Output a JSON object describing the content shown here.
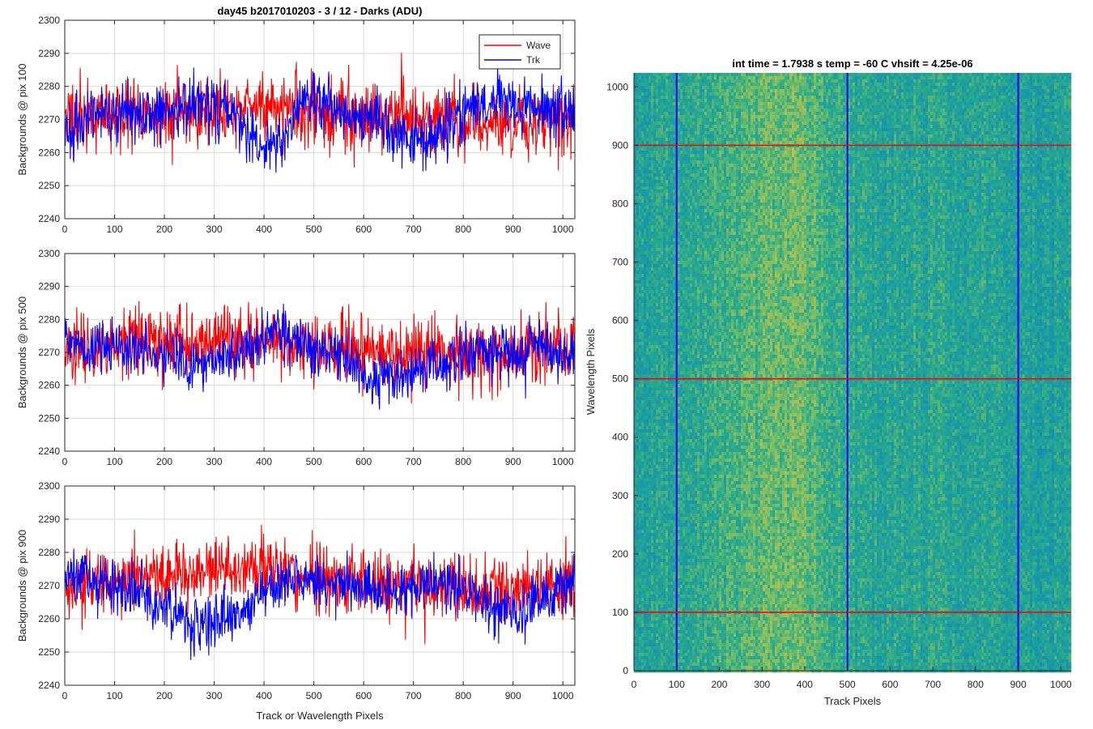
{
  "figure_title": "day45 b2017010203 - 3 / 12 - Darks (ADU)",
  "chart_data": [
    {
      "type": "line",
      "panel": "pix100",
      "ylabel": "Backgrounds @ pix 100",
      "xlabel": "",
      "xlim": [
        0,
        1024
      ],
      "ylim": [
        2240,
        2300
      ],
      "xticks": [
        0,
        100,
        200,
        300,
        400,
        500,
        600,
        700,
        800,
        900,
        1000
      ],
      "yticks": [
        2240,
        2250,
        2260,
        2270,
        2280,
        2290,
        2300
      ],
      "grid": true,
      "legend": {
        "placement": "top-right",
        "entries": [
          "Wave",
          "Trk"
        ]
      },
      "series": [
        {
          "name": "Wave",
          "color": "#ff0000",
          "noise_std": 6.5,
          "seed": 11,
          "trend_x": [
            0,
            200,
            300,
            400,
            500,
            600,
            700,
            800,
            900,
            1024
          ],
          "trend_y": [
            2271,
            2272,
            2273,
            2274,
            2272,
            2271,
            2270,
            2269,
            2269,
            2270
          ]
        },
        {
          "name": "Trk",
          "color": "#0000ff",
          "noise_std": 5.5,
          "seed": 23,
          "trend_x": [
            0,
            100,
            200,
            280,
            340,
            380,
            420,
            480,
            560,
            640,
            700,
            730,
            800,
            880,
            1024
          ],
          "trend_y": [
            2268,
            2271,
            2272,
            2275,
            2272,
            2262,
            2260,
            2276,
            2271,
            2269,
            2264,
            2262,
            2272,
            2276,
            2273
          ]
        }
      ]
    },
    {
      "type": "line",
      "panel": "pix500",
      "ylabel": "Backgrounds @ pix 500",
      "xlabel": "",
      "xlim": [
        0,
        1024
      ],
      "ylim": [
        2240,
        2300
      ],
      "xticks": [
        0,
        100,
        200,
        300,
        400,
        500,
        600,
        700,
        800,
        900,
        1000
      ],
      "yticks": [
        2240,
        2250,
        2260,
        2270,
        2280,
        2290,
        2300
      ],
      "grid": true,
      "series": [
        {
          "name": "Wave",
          "color": "#ff0000",
          "noise_std": 6.5,
          "seed": 37,
          "trend_x": [
            0,
            200,
            300,
            400,
            500,
            600,
            700,
            800,
            900,
            1024
          ],
          "trend_y": [
            2271,
            2273,
            2274,
            2274,
            2272,
            2270,
            2270,
            2269,
            2269,
            2271
          ]
        },
        {
          "name": "Trk",
          "color": "#0000ff",
          "noise_std": 5.0,
          "seed": 41,
          "trend_x": [
            0,
            100,
            180,
            260,
            330,
            420,
            560,
            620,
            700,
            820,
            1024
          ],
          "trend_y": [
            2274,
            2271,
            2270,
            2266,
            2268,
            2276,
            2268,
            2262,
            2264,
            2270,
            2270
          ]
        }
      ]
    },
    {
      "type": "line",
      "panel": "pix900",
      "ylabel": "Backgrounds @ pix 900",
      "xlabel": "Track or Wavelength Pixels",
      "xlim": [
        0,
        1024
      ],
      "ylim": [
        2240,
        2300
      ],
      "xticks": [
        0,
        100,
        200,
        300,
        400,
        500,
        600,
        700,
        800,
        900,
        1000
      ],
      "yticks": [
        2240,
        2250,
        2260,
        2270,
        2280,
        2290,
        2300
      ],
      "grid": true,
      "series": [
        {
          "name": "Wave",
          "color": "#ff0000",
          "noise_std": 6.5,
          "seed": 53,
          "trend_x": [
            0,
            200,
            300,
            400,
            500,
            600,
            700,
            800,
            900,
            1024
          ],
          "trend_y": [
            2270,
            2273,
            2276,
            2275,
            2273,
            2271,
            2270,
            2269,
            2268,
            2270
          ]
        },
        {
          "name": "Trk",
          "color": "#0000ff",
          "noise_std": 5.0,
          "seed": 67,
          "trend_x": [
            0,
            100,
            170,
            260,
            330,
            420,
            480,
            560,
            640,
            700,
            760,
            860,
            920,
            1024
          ],
          "trend_y": [
            2274,
            2269,
            2265,
            2258,
            2260,
            2270,
            2272,
            2270,
            2268,
            2270,
            2271,
            2264,
            2262,
            2274
          ]
        }
      ]
    },
    {
      "type": "heatmap",
      "panel": "image",
      "title": "int time = 1.7938 s    temp = -60 C    vhsift = 4.25e-06",
      "xlabel": "Track Pixels",
      "ylabel": "Wavelength Pixels",
      "xlim": [
        0,
        1024
      ],
      "ylim": [
        0,
        1024
      ],
      "xticks": [
        0,
        100,
        200,
        300,
        400,
        500,
        600,
        700,
        800,
        900,
        1000
      ],
      "yticks": [
        0,
        100,
        200,
        300,
        400,
        500,
        600,
        700,
        800,
        900,
        1000
      ],
      "colormap": "parula",
      "column_profile": {
        "x": [
          0,
          100,
          200,
          300,
          380,
          420,
          500,
          520,
          600,
          700,
          800,
          900,
          1024
        ],
        "level": [
          0.4,
          0.46,
          0.52,
          0.6,
          0.66,
          0.6,
          0.5,
          0.44,
          0.44,
          0.46,
          0.44,
          0.4,
          0.4
        ]
      },
      "marker_lines": [
        {
          "orientation": "vertical",
          "value": 100,
          "color": "#0000ff"
        },
        {
          "orientation": "vertical",
          "value": 500,
          "color": "#0000ff"
        },
        {
          "orientation": "vertical",
          "value": 900,
          "color": "#0000ff"
        },
        {
          "orientation": "horizontal",
          "value": 100,
          "color": "#ff0000"
        },
        {
          "orientation": "horizontal",
          "value": 500,
          "color": "#ff0000"
        },
        {
          "orientation": "horizontal",
          "value": 900,
          "color": "#ff0000"
        }
      ]
    }
  ]
}
